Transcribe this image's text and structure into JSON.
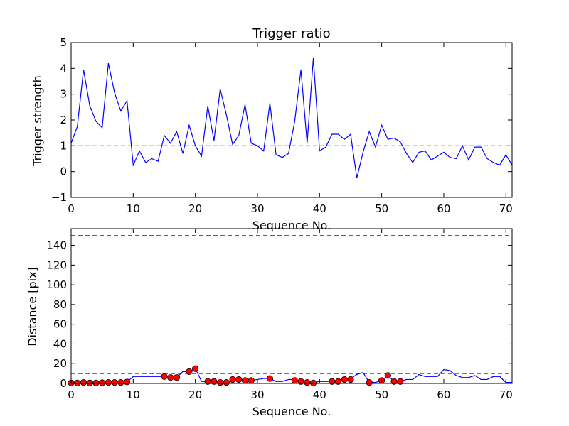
{
  "chart_data": [
    {
      "type": "line",
      "title": "Trigger ratio",
      "xlabel": "Sequence No.",
      "ylabel": "Trigger strength",
      "xlim": [
        0,
        71
      ],
      "ylim": [
        -1,
        5
      ],
      "xticks": [
        "0",
        "10",
        "20",
        "30",
        "40",
        "50",
        "60",
        "70"
      ],
      "yticks": [
        "−1",
        "0",
        "1",
        "2",
        "3",
        "4",
        "5"
      ],
      "grid": false,
      "threshold": 1.0,
      "colors": {
        "line": "#0000ff",
        "threshold": "#ff0000"
      },
      "series": [
        {
          "x": [
            0,
            1,
            2,
            3,
            4,
            5,
            6,
            7,
            8,
            9,
            10,
            11,
            12,
            13,
            14,
            15,
            16,
            17,
            18,
            19,
            20,
            21,
            22,
            23,
            24,
            25,
            26,
            27,
            28,
            29,
            30,
            31,
            32,
            33,
            34,
            35,
            36,
            37,
            38,
            39,
            40,
            41,
            42,
            43,
            44,
            45,
            46,
            47,
            48,
            49,
            50,
            51,
            52,
            53,
            54,
            55,
            56,
            57,
            58,
            59,
            60,
            61,
            62,
            63,
            64,
            65,
            66,
            67,
            68,
            69,
            70,
            71
          ],
          "y": [
            1.1,
            1.75,
            3.95,
            2.55,
            1.95,
            1.7,
            4.2,
            3.05,
            2.35,
            2.75,
            0.25,
            0.8,
            0.35,
            0.5,
            0.4,
            1.4,
            1.1,
            1.55,
            0.7,
            1.8,
            1.0,
            0.6,
            2.55,
            1.2,
            3.2,
            2.2,
            1.05,
            1.4,
            2.6,
            1.1,
            1.0,
            0.8,
            2.65,
            0.65,
            0.55,
            0.7,
            1.95,
            3.95,
            1.1,
            4.4,
            0.8,
            0.95,
            1.45,
            1.45,
            1.25,
            1.45,
            -0.25,
            0.75,
            1.55,
            0.95,
            1.8,
            1.25,
            1.3,
            1.15,
            0.7,
            0.35,
            0.75,
            0.8,
            0.45,
            0.6,
            0.75,
            0.55,
            0.5,
            1.0,
            0.45,
            0.95,
            0.95,
            0.5,
            0.35,
            0.25,
            0.65,
            0.25
          ]
        }
      ]
    },
    {
      "type": "line",
      "title": "",
      "xlabel": "Sequence No.",
      "ylabel": "Distance [pix]",
      "xlim": [
        0,
        71
      ],
      "ylim": [
        0,
        157
      ],
      "xticks": [
        "0",
        "10",
        "20",
        "30",
        "40",
        "50",
        "60",
        "70"
      ],
      "yticks": [
        "0",
        "20",
        "40",
        "60",
        "80",
        "100",
        "120",
        "140"
      ],
      "grid": false,
      "thresholds": [
        10,
        150
      ],
      "colors": {
        "line": "#0000ff",
        "threshold": "#ff0000",
        "marker": "#ff0000"
      },
      "series": [
        {
          "x": [
            0,
            1,
            2,
            3,
            4,
            5,
            6,
            7,
            8,
            9,
            10,
            11,
            12,
            13,
            14,
            15,
            16,
            17,
            18,
            19,
            20,
            21,
            22,
            23,
            24,
            25,
            26,
            27,
            28,
            29,
            30,
            31,
            32,
            33,
            34,
            35,
            36,
            37,
            38,
            39,
            40,
            41,
            42,
            43,
            44,
            45,
            46,
            47,
            48,
            49,
            50,
            51,
            52,
            53,
            54,
            55,
            56,
            57,
            58,
            59,
            60,
            61,
            62,
            63,
            64,
            65,
            66,
            67,
            68,
            69,
            70,
            71
          ],
          "y": [
            1,
            0.5,
            1,
            0.5,
            0.5,
            0.7,
            1,
            1,
            1,
            1.5,
            7,
            7,
            7,
            7,
            7,
            7,
            6,
            6,
            12,
            12,
            15,
            2,
            2,
            2,
            1,
            1,
            4,
            4,
            3,
            3,
            4,
            5,
            5,
            2,
            2,
            4,
            4,
            2,
            1,
            0.5,
            2,
            2,
            2,
            2,
            4,
            5,
            9,
            11,
            1,
            1,
            3,
            8,
            2,
            2,
            4,
            4,
            9,
            7,
            7,
            7,
            14,
            13,
            8,
            6,
            6,
            8,
            4,
            4,
            7,
            7,
            1,
            1
          ]
        }
      ],
      "markers": {
        "x": [
          0,
          1,
          2,
          3,
          4,
          5,
          6,
          7,
          8,
          9,
          15,
          16,
          17,
          19,
          20,
          22,
          23,
          24,
          25,
          26,
          27,
          28,
          29,
          32,
          36,
          37,
          38,
          39,
          42,
          43,
          44,
          45,
          48,
          50,
          51,
          52,
          53
        ],
        "y": [
          0.5,
          0.5,
          1,
          0.5,
          0.5,
          0.7,
          1,
          1,
          1,
          1.5,
          7,
          6,
          6,
          12,
          15,
          2,
          2,
          1,
          1,
          4,
          4,
          3,
          3,
          5,
          3,
          2,
          1,
          0.5,
          2,
          2,
          4,
          4,
          1,
          3,
          8,
          2,
          2
        ]
      }
    }
  ]
}
